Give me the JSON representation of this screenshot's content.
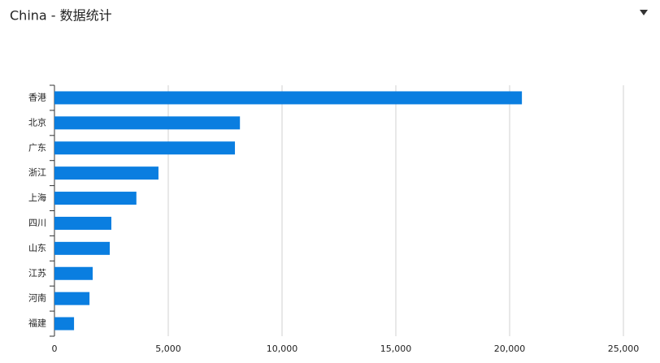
{
  "chart_data": {
    "type": "bar",
    "orientation": "horizontal",
    "title": "China - 数据统计",
    "categories": [
      "香港",
      "北京",
      "广东",
      "浙江",
      "上海",
      "四川",
      "山东",
      "江苏",
      "河南",
      "福建"
    ],
    "values": [
      20540,
      8150,
      7930,
      4570,
      3600,
      2500,
      2430,
      1680,
      1540,
      860
    ],
    "color": "#0a7ee0",
    "xlim": [
      0,
      25000
    ],
    "xticks": [
      0,
      {
        "value": 5000,
        "label": "5,000"
      },
      {
        "value": 10000,
        "label": "10,000"
      },
      {
        "value": 15000,
        "label": "15,000"
      },
      {
        "value": 20000,
        "label": "20,000"
      },
      {
        "value": 25000,
        "label": "25,000"
      }
    ],
    "grid": true
  }
}
